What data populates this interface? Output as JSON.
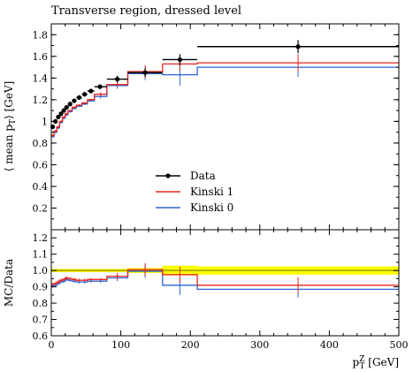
{
  "title": "Transverse region, dressed level",
  "colors": {
    "data": "#000000",
    "kinski1": "#e8271f",
    "kinski0": "#2d64d6",
    "band": "#ffff00",
    "ref": "#9a9a00"
  },
  "chart_data": [
    {
      "type": "line",
      "panel": "main",
      "ylabel": "⟨ mean p_T ⟩ [GeV]",
      "ylabel_parts": {
        "pre": "⟨ mean p",
        "sub": "T",
        "post": "⟩ [GeV]"
      },
      "xlim": [
        0,
        500
      ],
      "ylim": [
        0,
        1.9
      ],
      "yticks": [
        0.2,
        0.4,
        0.6,
        0.8,
        1,
        1.2,
        1.4,
        1.6,
        1.8
      ],
      "ytick_labels": [
        "0.2",
        "0.4",
        "0.6",
        "0.8",
        "1",
        "1.2",
        "1.4",
        "1.6",
        "1.8"
      ],
      "legend": {
        "placement": "center",
        "entries": [
          "Data",
          "Kinski 1",
          "Kinski 0"
        ]
      },
      "data": {
        "name": "Data",
        "points": [
          {
            "x": 2,
            "xlo": 0,
            "xhi": 4,
            "y": 0.95,
            "err": 0.02
          },
          {
            "x": 6,
            "xlo": 4,
            "xhi": 8,
            "y": 1.0,
            "err": 0.02
          },
          {
            "x": 10,
            "xlo": 8,
            "xhi": 12,
            "y": 1.04,
            "err": 0.02
          },
          {
            "x": 14,
            "xlo": 12,
            "xhi": 16,
            "y": 1.07,
            "err": 0.02
          },
          {
            "x": 18,
            "xlo": 16,
            "xhi": 20,
            "y": 1.1,
            "err": 0.02
          },
          {
            "x": 22,
            "xlo": 20,
            "xhi": 24,
            "y": 1.13,
            "err": 0.02
          },
          {
            "x": 27,
            "xlo": 24,
            "xhi": 30,
            "y": 1.16,
            "err": 0.02
          },
          {
            "x": 33,
            "xlo": 30,
            "xhi": 36,
            "y": 1.19,
            "err": 0.02
          },
          {
            "x": 40,
            "xlo": 36,
            "xhi": 44,
            "y": 1.22,
            "err": 0.02
          },
          {
            "x": 48,
            "xlo": 44,
            "xhi": 52,
            "y": 1.25,
            "err": 0.02
          },
          {
            "x": 57,
            "xlo": 52,
            "xhi": 62,
            "y": 1.28,
            "err": 0.02
          },
          {
            "x": 70,
            "xlo": 62,
            "xhi": 80,
            "y": 1.32,
            "err": 0.02
          },
          {
            "x": 95,
            "xlo": 80,
            "xhi": 110,
            "y": 1.39,
            "err": 0.03
          },
          {
            "x": 135,
            "xlo": 110,
            "xhi": 160,
            "y": 1.45,
            "err": 0.04
          },
          {
            "x": 185,
            "xlo": 160,
            "xhi": 210,
            "y": 1.57,
            "err": 0.05
          },
          {
            "x": 355,
            "xlo": 210,
            "xhi": 500,
            "y": 1.69,
            "err": 0.06
          }
        ]
      },
      "series": [
        {
          "name": "Kinski 1",
          "edges": [
            0,
            4,
            8,
            12,
            16,
            20,
            24,
            30,
            36,
            44,
            52,
            62,
            80,
            110,
            160,
            210,
            500
          ],
          "values": [
            0.87,
            0.91,
            0.95,
            1.0,
            1.04,
            1.07,
            1.1,
            1.13,
            1.15,
            1.17,
            1.2,
            1.25,
            1.34,
            1.46,
            1.53,
            1.54
          ],
          "errors": [
            0.01,
            0.01,
            0.01,
            0.01,
            0.01,
            0.01,
            0.01,
            0.01,
            0.01,
            0.01,
            0.01,
            0.02,
            0.02,
            0.06,
            0.06,
            0.08
          ]
        },
        {
          "name": "Kinski 0",
          "edges": [
            0,
            4,
            8,
            12,
            16,
            20,
            24,
            30,
            36,
            44,
            52,
            62,
            80,
            110,
            160,
            210,
            500
          ],
          "values": [
            0.86,
            0.9,
            0.94,
            0.99,
            1.03,
            1.06,
            1.09,
            1.12,
            1.14,
            1.16,
            1.19,
            1.23,
            1.33,
            1.44,
            1.43,
            1.5
          ],
          "errors": [
            0.01,
            0.01,
            0.01,
            0.01,
            0.01,
            0.01,
            0.01,
            0.01,
            0.01,
            0.01,
            0.01,
            0.02,
            0.03,
            0.06,
            0.1,
            0.09
          ]
        }
      ]
    },
    {
      "type": "line",
      "panel": "ratio",
      "ylabel": "MC/Data",
      "xlabel": "p_T^Z [GeV]",
      "xlabel_parts": {
        "pre": "p",
        "sup": "Z",
        "sub": "T",
        "post": " [GeV]"
      },
      "xlim": [
        0,
        500
      ],
      "ylim": [
        0.6,
        1.25
      ],
      "yticks": [
        0.6,
        0.7,
        0.8,
        0.9,
        1,
        1.1,
        1.2
      ],
      "ytick_labels": [
        "0.6",
        "0.7",
        "0.8",
        "0.9",
        "1.0",
        "1.1",
        "1.2"
      ],
      "xticks": [
        0,
        100,
        200,
        300,
        400,
        500
      ],
      "xtick_labels": [
        "0",
        "100",
        "200",
        "300",
        "400",
        "500"
      ],
      "reference": 1.0,
      "band": [
        {
          "xlo": 0,
          "xhi": 110,
          "lo": 0.99,
          "hi": 1.01
        },
        {
          "xlo": 110,
          "xhi": 160,
          "lo": 0.985,
          "hi": 1.015
        },
        {
          "xlo": 160,
          "xhi": 210,
          "lo": 0.97,
          "hi": 1.03
        },
        {
          "xlo": 210,
          "xhi": 500,
          "lo": 0.975,
          "hi": 1.025
        }
      ],
      "series": [
        {
          "name": "Kinski 1",
          "edges": [
            0,
            4,
            8,
            12,
            16,
            20,
            24,
            30,
            36,
            44,
            52,
            62,
            80,
            110,
            160,
            210,
            500
          ],
          "values": [
            0.915,
            0.92,
            0.93,
            0.94,
            0.945,
            0.955,
            0.95,
            0.945,
            0.94,
            0.94,
            0.945,
            0.945,
            0.965,
            1.005,
            0.975,
            0.91
          ],
          "errors": [
            0.01,
            0.01,
            0.01,
            0.01,
            0.01,
            0.01,
            0.01,
            0.01,
            0.01,
            0.01,
            0.01,
            0.01,
            0.02,
            0.04,
            0.05,
            0.05
          ]
        },
        {
          "name": "Kinski 0",
          "edges": [
            0,
            4,
            8,
            12,
            16,
            20,
            24,
            30,
            36,
            44,
            52,
            62,
            80,
            110,
            160,
            210,
            500
          ],
          "values": [
            0.905,
            0.91,
            0.92,
            0.93,
            0.935,
            0.945,
            0.94,
            0.935,
            0.93,
            0.93,
            0.935,
            0.935,
            0.955,
            0.995,
            0.91,
            0.885
          ],
          "errors": [
            0.01,
            0.01,
            0.01,
            0.01,
            0.01,
            0.01,
            0.01,
            0.01,
            0.01,
            0.01,
            0.01,
            0.01,
            0.02,
            0.04,
            0.06,
            0.05
          ]
        }
      ]
    }
  ]
}
